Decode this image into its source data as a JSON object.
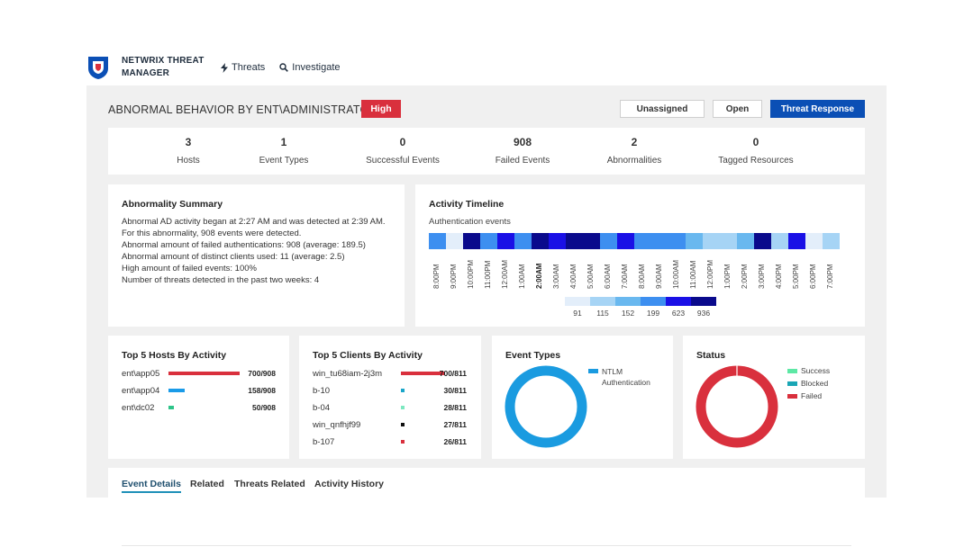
{
  "nav": {
    "brand": "NETWRIX THREAT MANAGER",
    "links": [
      {
        "label": "Threats",
        "icon": "lightning-icon"
      },
      {
        "label": "Investigate",
        "icon": "search-icon"
      }
    ]
  },
  "header": {
    "title": "ABNORMAL BEHAVIOR BY ENT\\ADMINISTRATOR",
    "severity": "High",
    "buttons": {
      "unassigned": "Unassigned",
      "open": "Open",
      "threat_response": "Threat Response"
    }
  },
  "stats": [
    {
      "value": "3",
      "label": "Hosts"
    },
    {
      "value": "1",
      "label": "Event Types"
    },
    {
      "value": "0",
      "label": "Successful Events"
    },
    {
      "value": "908",
      "label": "Failed Events"
    },
    {
      "value": "2",
      "label": "Abnormalities"
    },
    {
      "value": "0",
      "label": "Tagged Resources"
    }
  ],
  "summary": {
    "title": "Abnormality Summary",
    "lines": [
      "Abnormal AD activity began at 2:27 AM and was detected at 2:39 AM. For this abnormality, 908 events were detected.",
      "Abnormal amount of failed authentications: 908 (average: 189.5)",
      "Abnormal amount of distinct clients used: 11 (average: 2.5)",
      "High amount of failed events: 100%",
      "Number of threats detected in the past two weeks: 4"
    ]
  },
  "timeline": {
    "title": "Activity Timeline",
    "subtitle": "Authentication events",
    "hours": [
      "8:00PM",
      "9:00PM",
      "10:00PM",
      "11:00PM",
      "12:00AM",
      "1:00AM",
      "2:00AM",
      "3:00AM",
      "4:00AM",
      "5:00AM",
      "6:00AM",
      "7:00AM",
      "8:00AM",
      "9:00AM",
      "10:00AM",
      "11:00AM",
      "12:00PM",
      "1:00PM",
      "2:00PM",
      "3:00PM",
      "4:00PM",
      "5:00PM",
      "6:00PM",
      "7:00PM"
    ],
    "bold_hour": "2:00AM",
    "levels": [
      3,
      0,
      5,
      3,
      4,
      3,
      5,
      4,
      5,
      5,
      3,
      4,
      3,
      3,
      3,
      2,
      1,
      1,
      2,
      5,
      1,
      4,
      0,
      1
    ],
    "scale": [
      {
        "value": "91",
        "color": "#e3eefa"
      },
      {
        "value": "115",
        "color": "#a6d4f5"
      },
      {
        "value": "152",
        "color": "#69b8ef"
      },
      {
        "value": "199",
        "color": "#3d8ff0"
      },
      {
        "value": "623",
        "color": "#1a10e6"
      },
      {
        "value": "936",
        "color": "#0a0a8c"
      }
    ]
  },
  "hosts": {
    "title": "Top 5 Hosts By Activity",
    "items": [
      {
        "name": "ent\\app05",
        "count": "700/908",
        "fraction": 0.771,
        "color": "#d9303d"
      },
      {
        "name": "ent\\app04",
        "count": "158/908",
        "fraction": 0.174,
        "color": "#1a9be8"
      },
      {
        "name": "ent\\dc02",
        "count": "50/908",
        "fraction": 0.055,
        "color": "#2ec489"
      }
    ]
  },
  "clients": {
    "title": "Top 5 Clients By Activity",
    "items": [
      {
        "name": "win_tu68iam-2j3m",
        "count": "700/811",
        "fraction": 0.863,
        "color": "#d9303d"
      },
      {
        "name": "b-10",
        "count": "30/811",
        "fraction": 0.037,
        "color": "#1aa6c9"
      },
      {
        "name": "b-04",
        "count": "28/811",
        "fraction": 0.035,
        "color": "#7de8c0"
      },
      {
        "name": "win_qnfhjf99",
        "count": "27/811",
        "fraction": 0.033,
        "color": "#111111"
      },
      {
        "name": "b-107",
        "count": "26/811",
        "fraction": 0.032,
        "color": "#d9303d"
      }
    ]
  },
  "event_types": {
    "title": "Event Types",
    "legend": [
      {
        "label": "NTLM Authentication",
        "color": "#1a9be0"
      }
    ]
  },
  "status": {
    "title": "Status",
    "legend": [
      {
        "label": "Success",
        "color": "#5de8a5"
      },
      {
        "label": "Blocked",
        "color": "#1aa6b5"
      },
      {
        "label": "Failed",
        "color": "#d9303d"
      }
    ]
  },
  "tabs": [
    "Event Details",
    "Related",
    "Threats Related",
    "Activity History"
  ]
}
